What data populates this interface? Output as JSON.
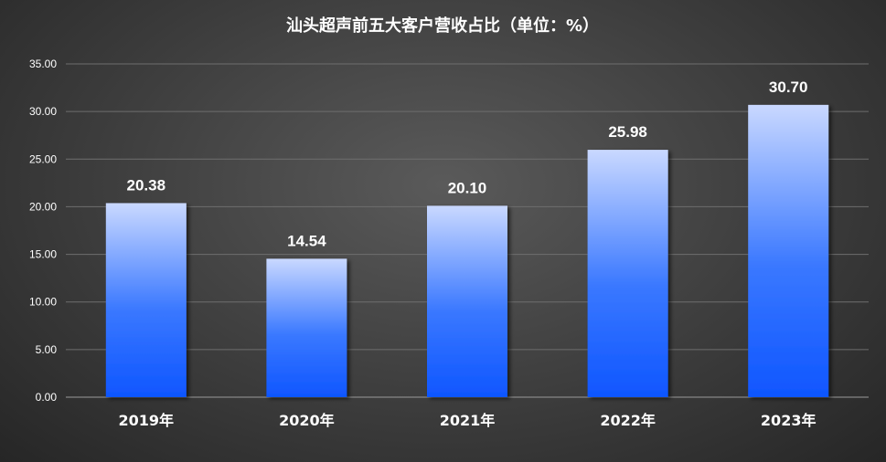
{
  "chart_data": {
    "type": "bar",
    "title": "汕头超声前五大客户营收占比（单位：%）",
    "categories": [
      "2019年",
      "2020年",
      "2021年",
      "2022年",
      "2023年"
    ],
    "values": [
      20.38,
      14.54,
      20.1,
      25.98,
      30.7
    ],
    "value_labels": [
      "20.38",
      "14.54",
      "20.10",
      "25.98",
      "30.70"
    ],
    "ylim": [
      0,
      35
    ],
    "yticks": [
      "0.00",
      "5.00",
      "10.00",
      "15.00",
      "20.00",
      "25.00",
      "30.00",
      "35.00"
    ],
    "grid": true,
    "legend": "none",
    "colors": {
      "bar_top": "#c9d8ff",
      "bar_bottom": "#0f56ff",
      "grid": "#6e6e6e"
    }
  }
}
